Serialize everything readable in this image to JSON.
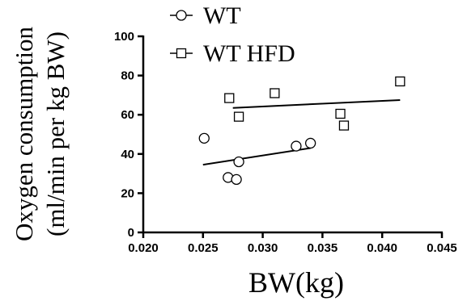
{
  "chart_data": {
    "type": "scatter",
    "xlabel": "BW(kg)",
    "ylabel_lines": [
      "Oxygen consumption",
      "(ml/min per kg BW)"
    ],
    "xlim": [
      0.02,
      0.045
    ],
    "ylim": [
      0,
      100
    ],
    "x_ticks": [
      "0.020",
      "0.025",
      "0.030",
      "0.035",
      "0.040",
      "0.045"
    ],
    "y_ticks": [
      "0",
      "20",
      "40",
      "60",
      "80",
      "100"
    ],
    "grid": false,
    "legend_position": "top",
    "series": [
      {
        "name": "WT",
        "marker": "circle",
        "color": "#000000",
        "points": [
          [
            0.0251,
            48
          ],
          [
            0.0271,
            28
          ],
          [
            0.0278,
            27
          ],
          [
            0.028,
            36
          ],
          [
            0.0328,
            44
          ],
          [
            0.034,
            45.5
          ]
        ],
        "fit_line": [
          [
            0.025,
            34.5
          ],
          [
            0.034,
            43
          ]
        ]
      },
      {
        "name": "WT HFD",
        "marker": "square",
        "color": "#000000",
        "points": [
          [
            0.0272,
            68.5
          ],
          [
            0.028,
            59
          ],
          [
            0.031,
            71
          ],
          [
            0.0365,
            60.5
          ],
          [
            0.0368,
            54.5
          ],
          [
            0.0415,
            77
          ]
        ],
        "fit_line": [
          [
            0.0275,
            63.5
          ],
          [
            0.0415,
            67.5
          ]
        ]
      }
    ]
  }
}
